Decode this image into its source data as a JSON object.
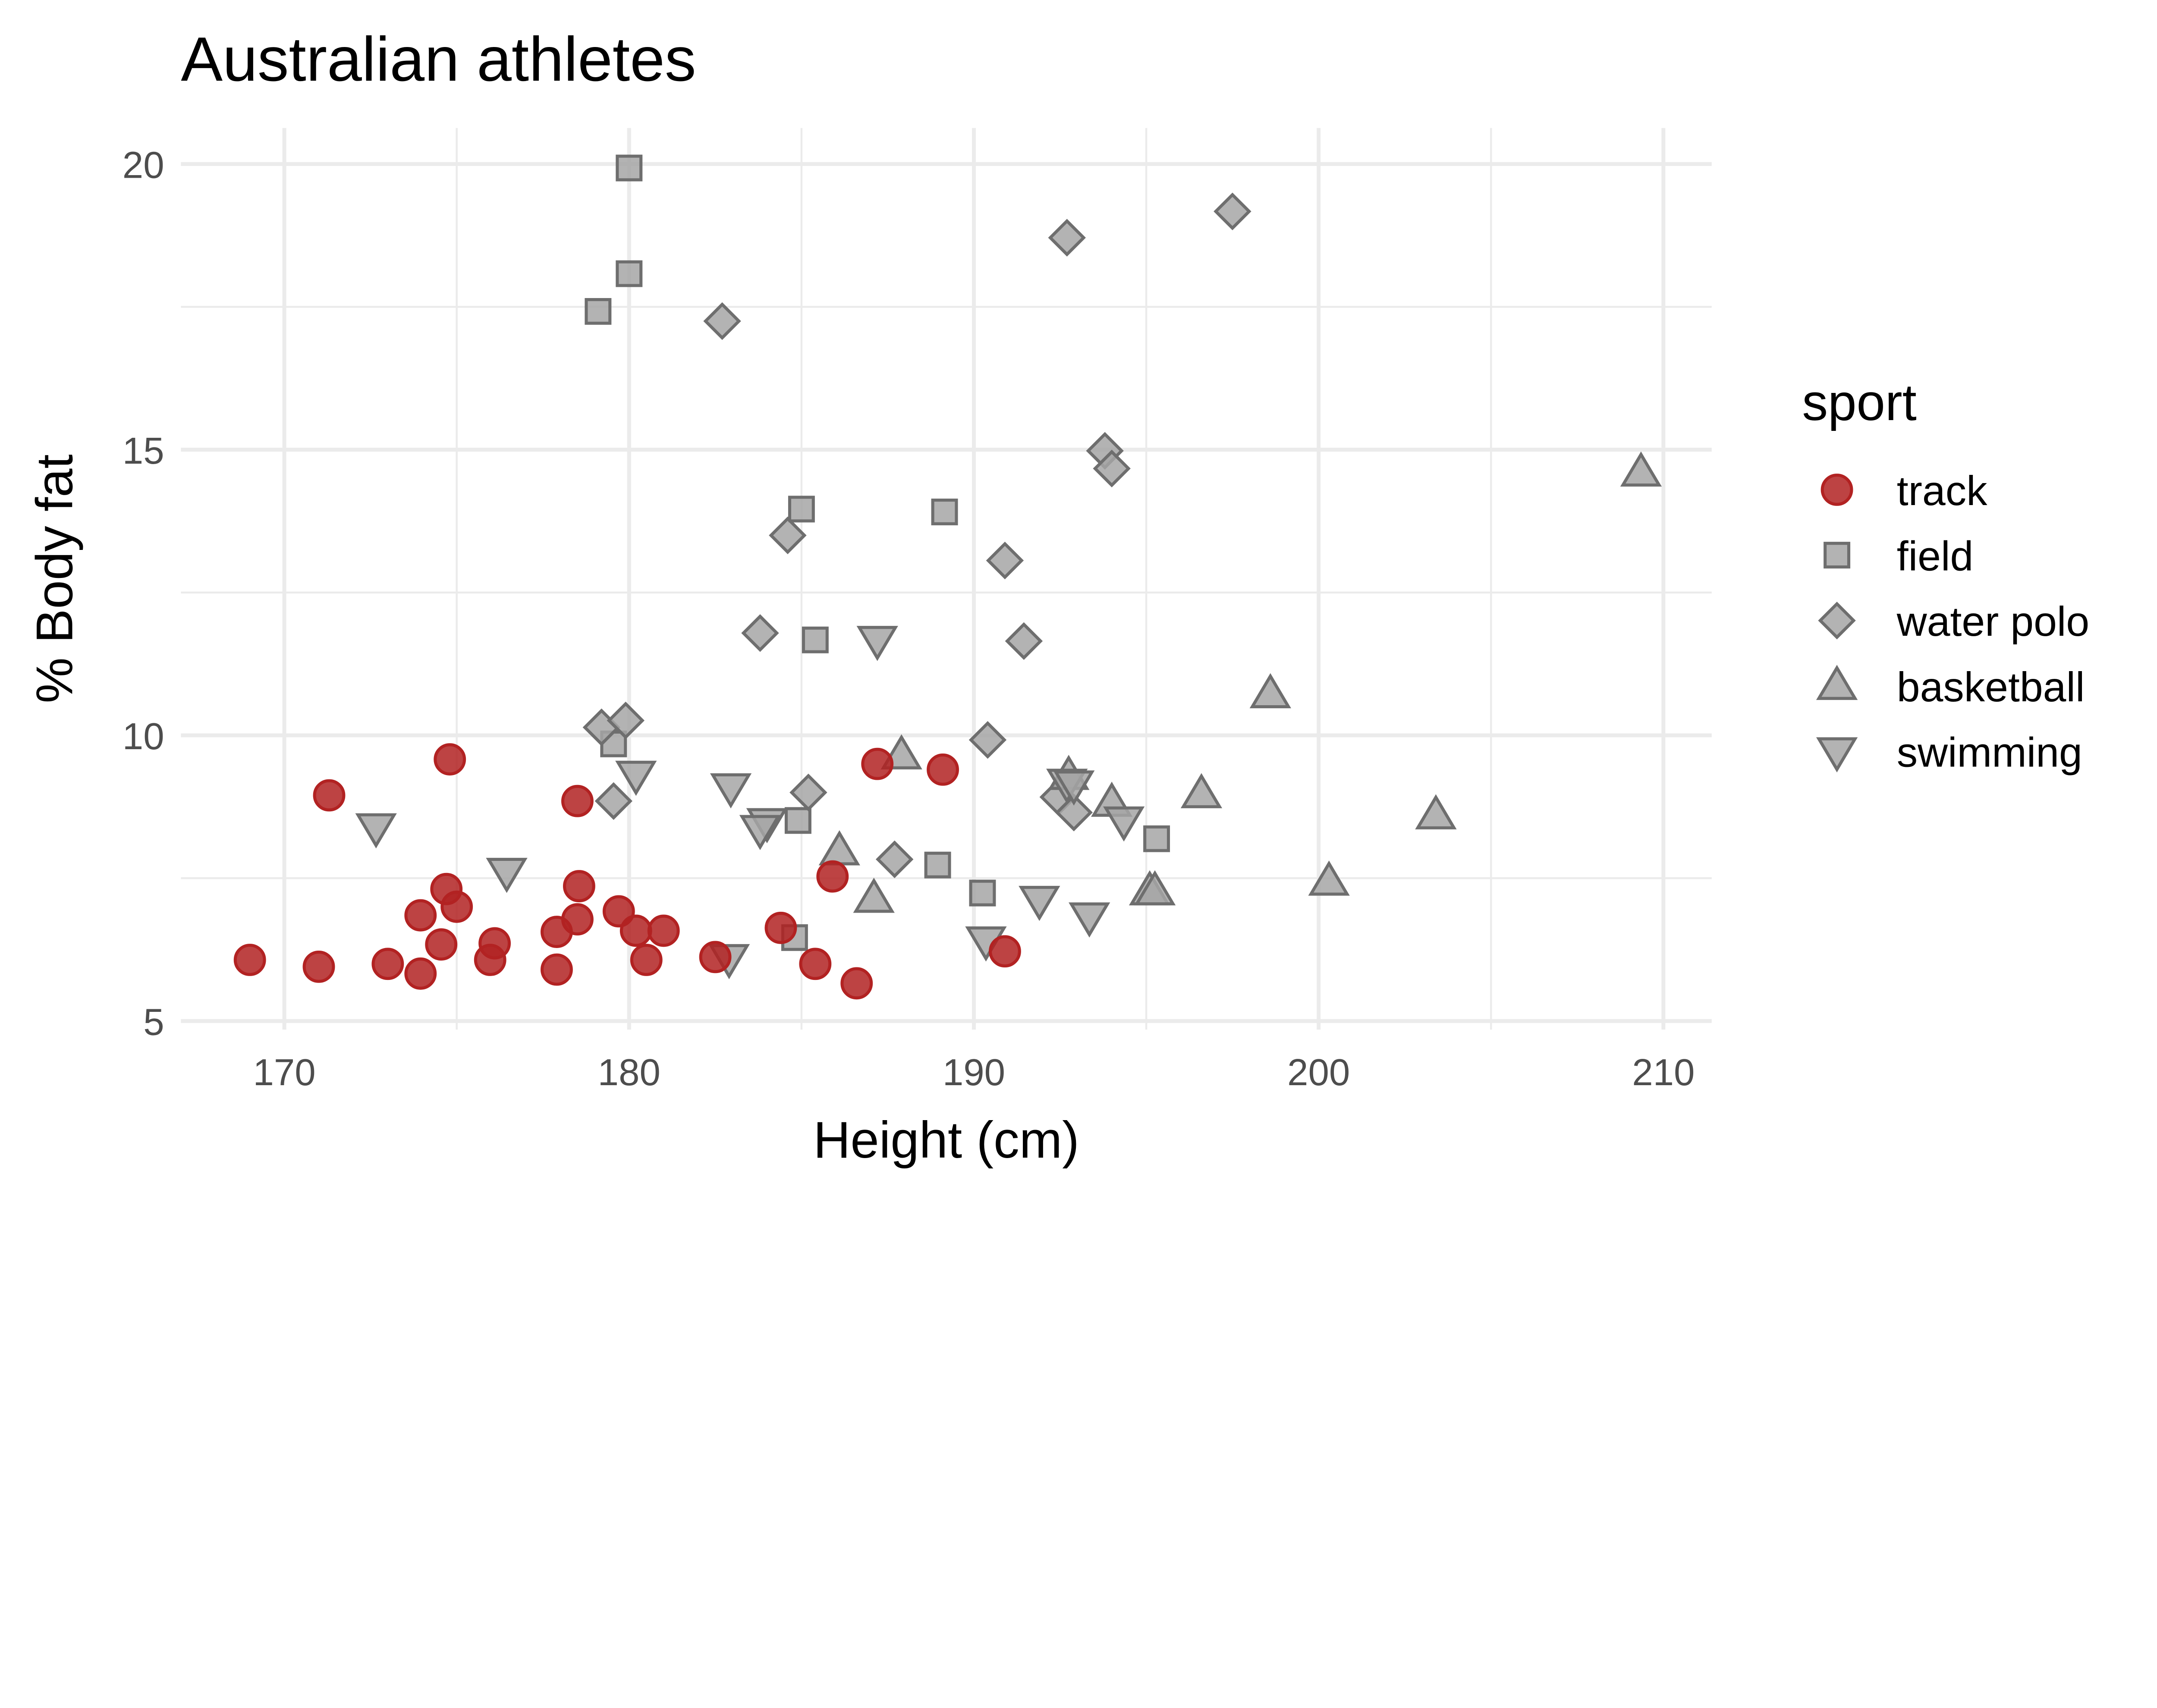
{
  "chart_data": {
    "type": "scatter",
    "title": "Australian athletes",
    "xlabel": "Height (cm)",
    "ylabel": "% Body fat",
    "xlim": [
      167,
      211.4
    ],
    "ylim": [
      4.85,
      20.63
    ],
    "xticks": [
      170,
      180,
      190,
      200,
      210
    ],
    "yticks": [
      5,
      10,
      15,
      20
    ],
    "grid": true,
    "legend": {
      "title": "sport",
      "position": "right"
    },
    "colors": {
      "track": "#B22222",
      "other": "#A6A6A6",
      "stroke_other": "#6E6E6E",
      "grid": "#EBEBEB"
    },
    "series": [
      {
        "name": "track",
        "shape": "circle",
        "points": [
          [
            169.0,
            6.07
          ],
          [
            171.0,
            5.95
          ],
          [
            171.3,
            8.95
          ],
          [
            173.0,
            6.0
          ],
          [
            173.95,
            5.83
          ],
          [
            173.95,
            6.85
          ],
          [
            174.55,
            6.34
          ],
          [
            174.7,
            7.31
          ],
          [
            175.0,
            7.0
          ],
          [
            174.8,
            9.58
          ],
          [
            175.97,
            6.07
          ],
          [
            176.1,
            6.36
          ],
          [
            177.9,
            5.9
          ],
          [
            177.9,
            6.56
          ],
          [
            178.5,
            6.78
          ],
          [
            178.5,
            8.85
          ],
          [
            178.55,
            7.36
          ],
          [
            179.7,
            6.92
          ],
          [
            180.2,
            6.58
          ],
          [
            180.5,
            6.07
          ],
          [
            181.0,
            6.58
          ],
          [
            182.5,
            6.12
          ],
          [
            184.4,
            6.63
          ],
          [
            185.4,
            6.0
          ],
          [
            185.9,
            7.53
          ],
          [
            186.6,
            5.66
          ],
          [
            187.2,
            9.5
          ],
          [
            189.1,
            9.4
          ],
          [
            190.9,
            6.22
          ]
        ]
      },
      {
        "name": "field",
        "shape": "square",
        "points": [
          [
            180.0,
            19.93
          ],
          [
            180.0,
            18.08
          ],
          [
            179.1,
            17.42
          ],
          [
            185.0,
            13.96
          ],
          [
            189.15,
            13.91
          ],
          [
            185.4,
            11.67
          ],
          [
            179.55,
            9.85
          ],
          [
            184.9,
            8.51
          ],
          [
            188.95,
            7.73
          ],
          [
            190.25,
            7.24
          ],
          [
            195.3,
            8.19
          ],
          [
            184.8,
            6.46
          ]
        ]
      },
      {
        "name": "water polo",
        "shape": "diamond",
        "points": [
          [
            197.5,
            19.17
          ],
          [
            192.7,
            18.71
          ],
          [
            182.7,
            17.25
          ],
          [
            193.8,
            14.98
          ],
          [
            194.0,
            14.67
          ],
          [
            184.6,
            13.5
          ],
          [
            190.9,
            13.06
          ],
          [
            183.8,
            11.79
          ],
          [
            191.45,
            11.65
          ],
          [
            179.2,
            10.14
          ],
          [
            179.9,
            10.26
          ],
          [
            190.4,
            9.92
          ],
          [
            179.55,
            8.85
          ],
          [
            185.2,
            9.0
          ],
          [
            192.45,
            8.92
          ],
          [
            192.9,
            8.65
          ],
          [
            187.7,
            7.83
          ]
        ]
      },
      {
        "name": "basketball",
        "shape": "triangle-up",
        "points": [
          [
            209.35,
            14.6
          ],
          [
            198.6,
            10.72
          ],
          [
            187.9,
            9.65
          ],
          [
            192.75,
            9.29
          ],
          [
            194.0,
            8.82
          ],
          [
            196.6,
            8.97
          ],
          [
            203.4,
            8.6
          ],
          [
            200.3,
            7.44
          ],
          [
            186.1,
            7.97
          ],
          [
            187.1,
            7.14
          ],
          [
            195.1,
            7.27
          ],
          [
            195.25,
            7.27
          ]
        ]
      },
      {
        "name": "swimming",
        "shape": "triangle-down",
        "points": [
          [
            187.2,
            11.67
          ],
          [
            180.2,
            9.31
          ],
          [
            182.95,
            9.09
          ],
          [
            172.66,
            8.39
          ],
          [
            184.0,
            8.48
          ],
          [
            183.8,
            8.36
          ],
          [
            176.45,
            7.61
          ],
          [
            192.7,
            9.17
          ],
          [
            192.9,
            9.14
          ],
          [
            194.35,
            8.51
          ],
          [
            191.9,
            7.12
          ],
          [
            193.35,
            6.83
          ],
          [
            190.35,
            6.41
          ],
          [
            182.9,
            6.1
          ]
        ]
      }
    ]
  }
}
